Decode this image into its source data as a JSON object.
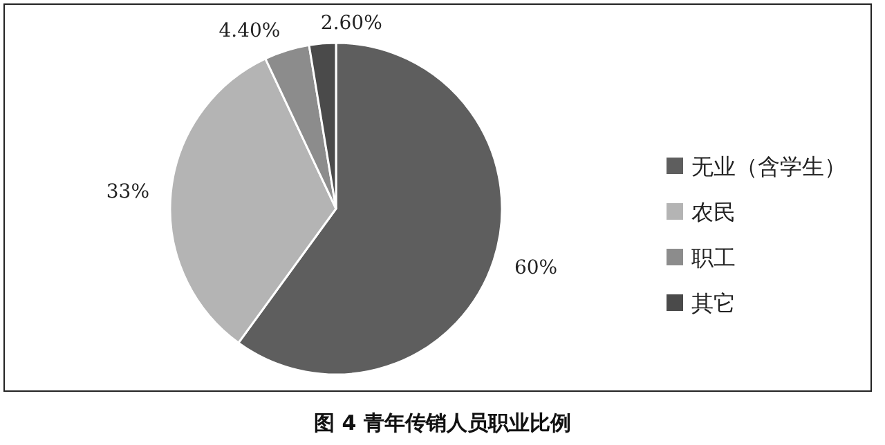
{
  "chart_data": {
    "type": "pie",
    "title": "图 4 青年传销人员职业比例",
    "categories": [
      "无业（含学生）",
      "农民",
      "职工",
      "其它"
    ],
    "values": [
      60,
      33,
      4.4,
      2.6
    ],
    "colors": [
      "#5e5e5e",
      "#b4b4b4",
      "#8c8c8c",
      "#4a4a4a"
    ],
    "value_labels": [
      "60%",
      "33%",
      "4.40%",
      "2.60%"
    ],
    "legend": "right"
  }
}
